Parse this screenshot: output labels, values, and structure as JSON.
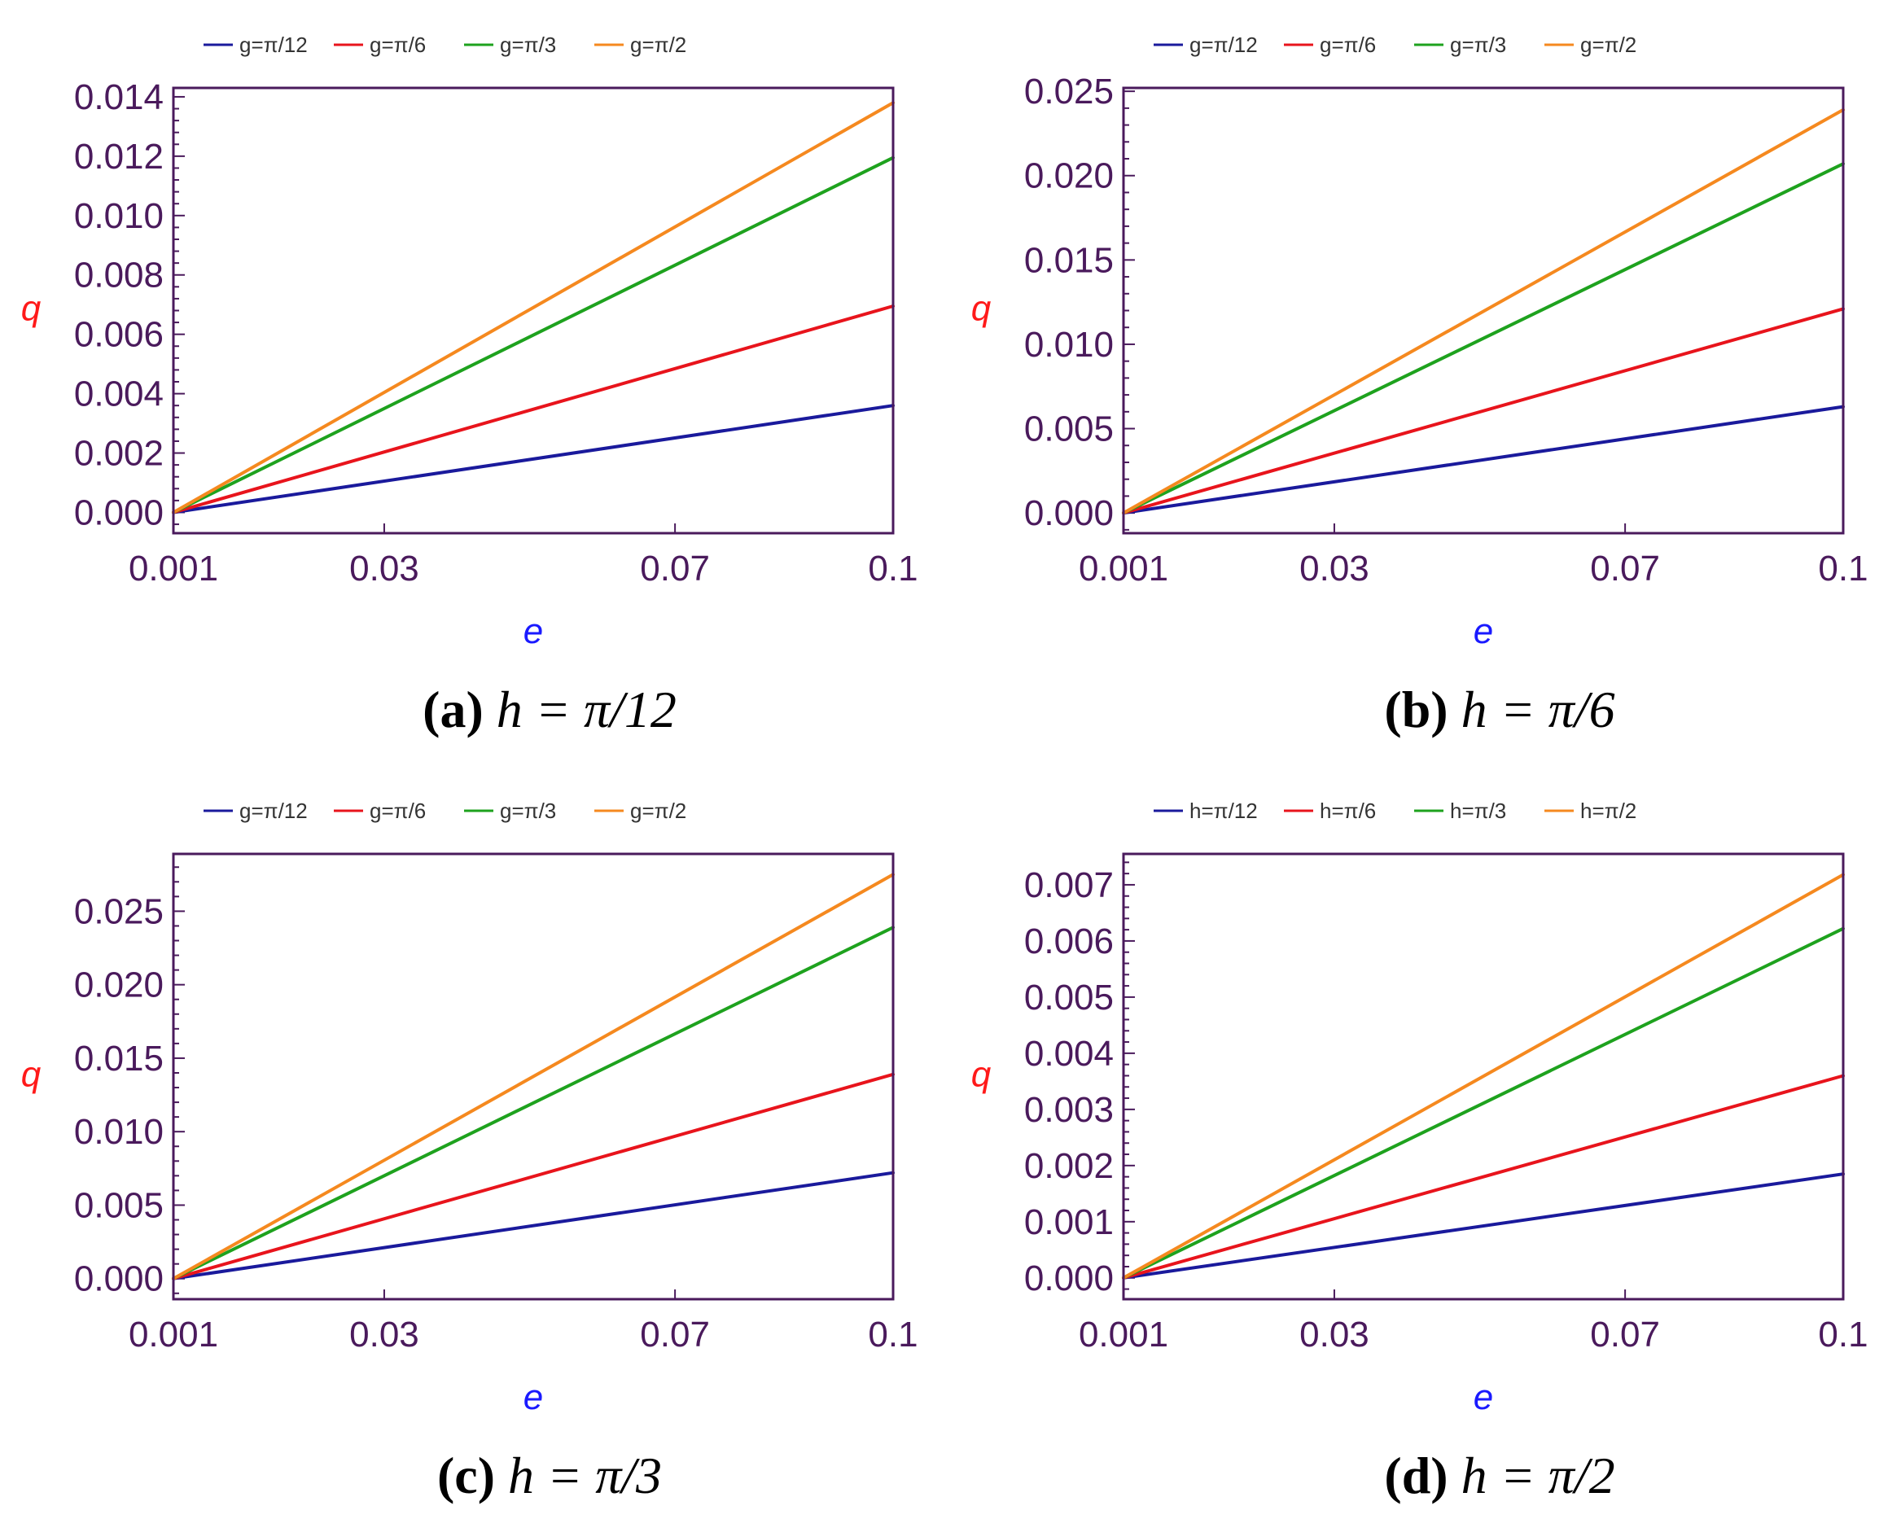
{
  "chart_data": [
    {
      "type": "line",
      "caption_label": "(a)",
      "caption_formula": "h = π/12",
      "xlabel": "e",
      "ylabel": "q",
      "xticks": [
        "0.001",
        "0.03",
        "0.07",
        "0.1"
      ],
      "xtick_values": [
        0.001,
        0.03,
        0.07,
        0.1
      ],
      "yticks": [
        "0.000",
        "0.002",
        "0.004",
        "0.006",
        "0.008",
        "0.010",
        "0.012",
        "0.014"
      ],
      "ytick_values": [
        0,
        0.002,
        0.004,
        0.006,
        0.008,
        0.01,
        0.012,
        0.014
      ],
      "xlim": [
        0.001,
        0.1
      ],
      "ylim": [
        -0.0007,
        0.0143
      ],
      "x": [
        0.001,
        0.1
      ],
      "series": [
        {
          "name": "g=π/12",
          "color": "#1a1a9c",
          "values": [
            0,
            0.0036
          ]
        },
        {
          "name": "g=π/6",
          "color": "#e8141c",
          "values": [
            0,
            0.00695
          ]
        },
        {
          "name": "g=π/3",
          "color": "#1ea21e",
          "values": [
            0,
            0.01195
          ]
        },
        {
          "name": "g=π/2",
          "color": "#f5891f",
          "values": [
            0,
            0.0138
          ]
        }
      ]
    },
    {
      "type": "line",
      "caption_label": "(b)",
      "caption_formula": "h = π/6",
      "xlabel": "e",
      "ylabel": "q",
      "xticks": [
        "0.001",
        "0.03",
        "0.07",
        "0.1"
      ],
      "xtick_values": [
        0.001,
        0.03,
        0.07,
        0.1
      ],
      "yticks": [
        "0.000",
        "0.005",
        "0.010",
        "0.015",
        "0.020",
        "0.025"
      ],
      "ytick_values": [
        0,
        0.005,
        0.01,
        0.015,
        0.02,
        0.025
      ],
      "xlim": [
        0.001,
        0.1
      ],
      "ylim": [
        -0.0012,
        0.0252
      ],
      "x": [
        0.001,
        0.1
      ],
      "series": [
        {
          "name": "g=π/12",
          "color": "#1a1a9c",
          "values": [
            0,
            0.0063
          ]
        },
        {
          "name": "g=π/6",
          "color": "#e8141c",
          "values": [
            0,
            0.0121
          ]
        },
        {
          "name": "g=π/3",
          "color": "#1ea21e",
          "values": [
            0,
            0.0207
          ]
        },
        {
          "name": "g=π/2",
          "color": "#f5891f",
          "values": [
            0,
            0.0239
          ]
        }
      ]
    },
    {
      "type": "line",
      "caption_label": "(c)",
      "caption_formula": "h = π/3",
      "xlabel": "e",
      "ylabel": "q",
      "xticks": [
        "0.001",
        "0.03",
        "0.07",
        "0.1"
      ],
      "xtick_values": [
        0.001,
        0.03,
        0.07,
        0.1
      ],
      "yticks": [
        "0.000",
        "0.005",
        "0.010",
        "0.015",
        "0.020",
        "0.025"
      ],
      "ytick_values": [
        0,
        0.005,
        0.01,
        0.015,
        0.02,
        0.025
      ],
      "xlim": [
        0.001,
        0.1
      ],
      "ylim": [
        -0.0014,
        0.0289
      ],
      "x": [
        0.001,
        0.1
      ],
      "series": [
        {
          "name": "g=π/12",
          "color": "#1a1a9c",
          "values": [
            0,
            0.0072
          ]
        },
        {
          "name": "g=π/6",
          "color": "#e8141c",
          "values": [
            0,
            0.0139
          ]
        },
        {
          "name": "g=π/3",
          "color": "#1ea21e",
          "values": [
            0,
            0.0239
          ]
        },
        {
          "name": "g=π/2",
          "color": "#f5891f",
          "values": [
            0,
            0.0275
          ]
        }
      ]
    },
    {
      "type": "line",
      "caption_label": "(d)",
      "caption_formula": "h = π/2",
      "xlabel": "e",
      "ylabel": "q",
      "xticks": [
        "0.001",
        "0.03",
        "0.07",
        "0.1"
      ],
      "xtick_values": [
        0.001,
        0.03,
        0.07,
        0.1
      ],
      "yticks": [
        "0.000",
        "0.001",
        "0.002",
        "0.003",
        "0.004",
        "0.005",
        "0.006",
        "0.007"
      ],
      "ytick_values": [
        0,
        0.001,
        0.002,
        0.003,
        0.004,
        0.005,
        0.006,
        0.007
      ],
      "xlim": [
        0.001,
        0.1
      ],
      "ylim": [
        -0.00038,
        0.00755
      ],
      "x": [
        0.001,
        0.1
      ],
      "series": [
        {
          "name": "h=π/12",
          "color": "#1a1a9c",
          "values": [
            0,
            0.00185
          ]
        },
        {
          "name": "h=π/6",
          "color": "#e8141c",
          "values": [
            0,
            0.0036
          ]
        },
        {
          "name": "h=π/3",
          "color": "#1ea21e",
          "values": [
            0,
            0.00622
          ]
        },
        {
          "name": "h=π/2",
          "color": "#f5891f",
          "values": [
            0,
            0.00718
          ]
        }
      ]
    }
  ],
  "colors": {
    "axis_frame": "#4a1a5c",
    "tick_text": "#4a1a5c",
    "xlabel": "#1a1aff",
    "ylabel": "#ff1a1a"
  }
}
